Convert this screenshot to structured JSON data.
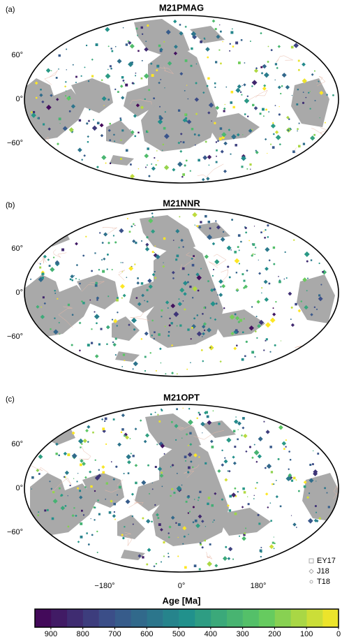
{
  "panels": [
    {
      "label": "(a)",
      "title": "M21PMAG"
    },
    {
      "label": "(b)",
      "title": "M21NNR"
    },
    {
      "label": "(c)",
      "title": "M21OPT"
    }
  ],
  "lat_ticks": [
    {
      "value": 60,
      "label": "60°"
    },
    {
      "value": 0,
      "label": "0°"
    },
    {
      "value": -60,
      "label": "−60°"
    }
  ],
  "lon_ticks": [
    {
      "value": -180,
      "label": "−180°"
    },
    {
      "value": 0,
      "label": "0°"
    },
    {
      "value": 180,
      "label": "180°"
    }
  ],
  "legend": [
    "EY17",
    "J18",
    "T18"
  ],
  "colorbar": {
    "label": "Age [Ma]",
    "lim": [
      950,
      0
    ],
    "ticks": [
      900,
      800,
      700,
      600,
      500,
      400,
      300,
      200,
      100,
      0
    ]
  }
}
